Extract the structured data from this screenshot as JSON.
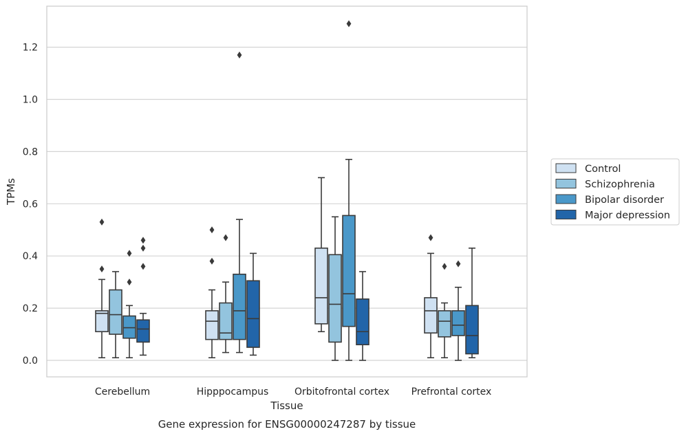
{
  "chart_data": {
    "type": "boxplot",
    "xlabel": "Tissue",
    "ylabel": "TPMs",
    "caption": "Gene expression for ENSG00000247287 by tissue",
    "ylim": [
      -0.065,
      1.36
    ],
    "yticks": [
      "0.0",
      "0.2",
      "0.4",
      "0.6",
      "0.8",
      "1.0",
      "1.2"
    ],
    "grid": true,
    "legend_position": "right",
    "categories": [
      "Cerebellum",
      "Hipppocampus",
      "Orbitofrontal cortex",
      "Prefrontal cortex"
    ],
    "series": [
      {
        "name": "Control",
        "color": "#cfe1f2",
        "boxes": [
          {
            "whislo": 0.01,
            "q1": 0.11,
            "med": 0.18,
            "q3": 0.19,
            "whishi": 0.31,
            "fliers": [
              0.35,
              0.53
            ]
          },
          {
            "whislo": 0.01,
            "q1": 0.08,
            "med": 0.15,
            "q3": 0.19,
            "whishi": 0.27,
            "fliers": [
              0.38,
              0.5
            ]
          },
          {
            "whislo": 0.11,
            "q1": 0.14,
            "med": 0.24,
            "q3": 0.43,
            "whishi": 0.7,
            "fliers": []
          },
          {
            "whislo": 0.01,
            "q1": 0.105,
            "med": 0.19,
            "q3": 0.24,
            "whishi": 0.41,
            "fliers": [
              0.47
            ]
          }
        ]
      },
      {
        "name": "Schizophrenia",
        "color": "#93c4de",
        "boxes": [
          {
            "whislo": 0.01,
            "q1": 0.1,
            "med": 0.175,
            "q3": 0.27,
            "whishi": 0.34,
            "fliers": []
          },
          {
            "whislo": 0.03,
            "q1": 0.08,
            "med": 0.105,
            "q3": 0.22,
            "whishi": 0.3,
            "fliers": [
              0.47
            ]
          },
          {
            "whislo": 0.0,
            "q1": 0.07,
            "med": 0.215,
            "q3": 0.405,
            "whishi": 0.55,
            "fliers": []
          },
          {
            "whislo": 0.01,
            "q1": 0.09,
            "med": 0.15,
            "q3": 0.19,
            "whishi": 0.22,
            "fliers": [
              0.36
            ]
          }
        ]
      },
      {
        "name": "Bipolar disorder",
        "color": "#4a98c9",
        "boxes": [
          {
            "whislo": 0.01,
            "q1": 0.085,
            "med": 0.125,
            "q3": 0.17,
            "whishi": 0.21,
            "fliers": [
              0.3,
              0.41
            ]
          },
          {
            "whislo": 0.03,
            "q1": 0.08,
            "med": 0.19,
            "q3": 0.33,
            "whishi": 0.54,
            "fliers": [
              1.17
            ]
          },
          {
            "whislo": 0.0,
            "q1": 0.13,
            "med": 0.255,
            "q3": 0.555,
            "whishi": 0.77,
            "fliers": [
              1.29
            ]
          },
          {
            "whislo": 0.0,
            "q1": 0.095,
            "med": 0.135,
            "q3": 0.19,
            "whishi": 0.28,
            "fliers": [
              0.37
            ]
          }
        ]
      },
      {
        "name": "Major depression",
        "color": "#2265a9",
        "boxes": [
          {
            "whislo": 0.02,
            "q1": 0.07,
            "med": 0.12,
            "q3": 0.155,
            "whishi": 0.18,
            "fliers": [
              0.36,
              0.43,
              0.46
            ]
          },
          {
            "whislo": 0.02,
            "q1": 0.05,
            "med": 0.16,
            "q3": 0.305,
            "whishi": 0.41,
            "fliers": []
          },
          {
            "whislo": 0.0,
            "q1": 0.06,
            "med": 0.11,
            "q3": 0.235,
            "whishi": 0.34,
            "fliers": []
          },
          {
            "whislo": 0.01,
            "q1": 0.025,
            "med": 0.095,
            "q3": 0.21,
            "whishi": 0.43,
            "fliers": []
          }
        ]
      }
    ]
  }
}
